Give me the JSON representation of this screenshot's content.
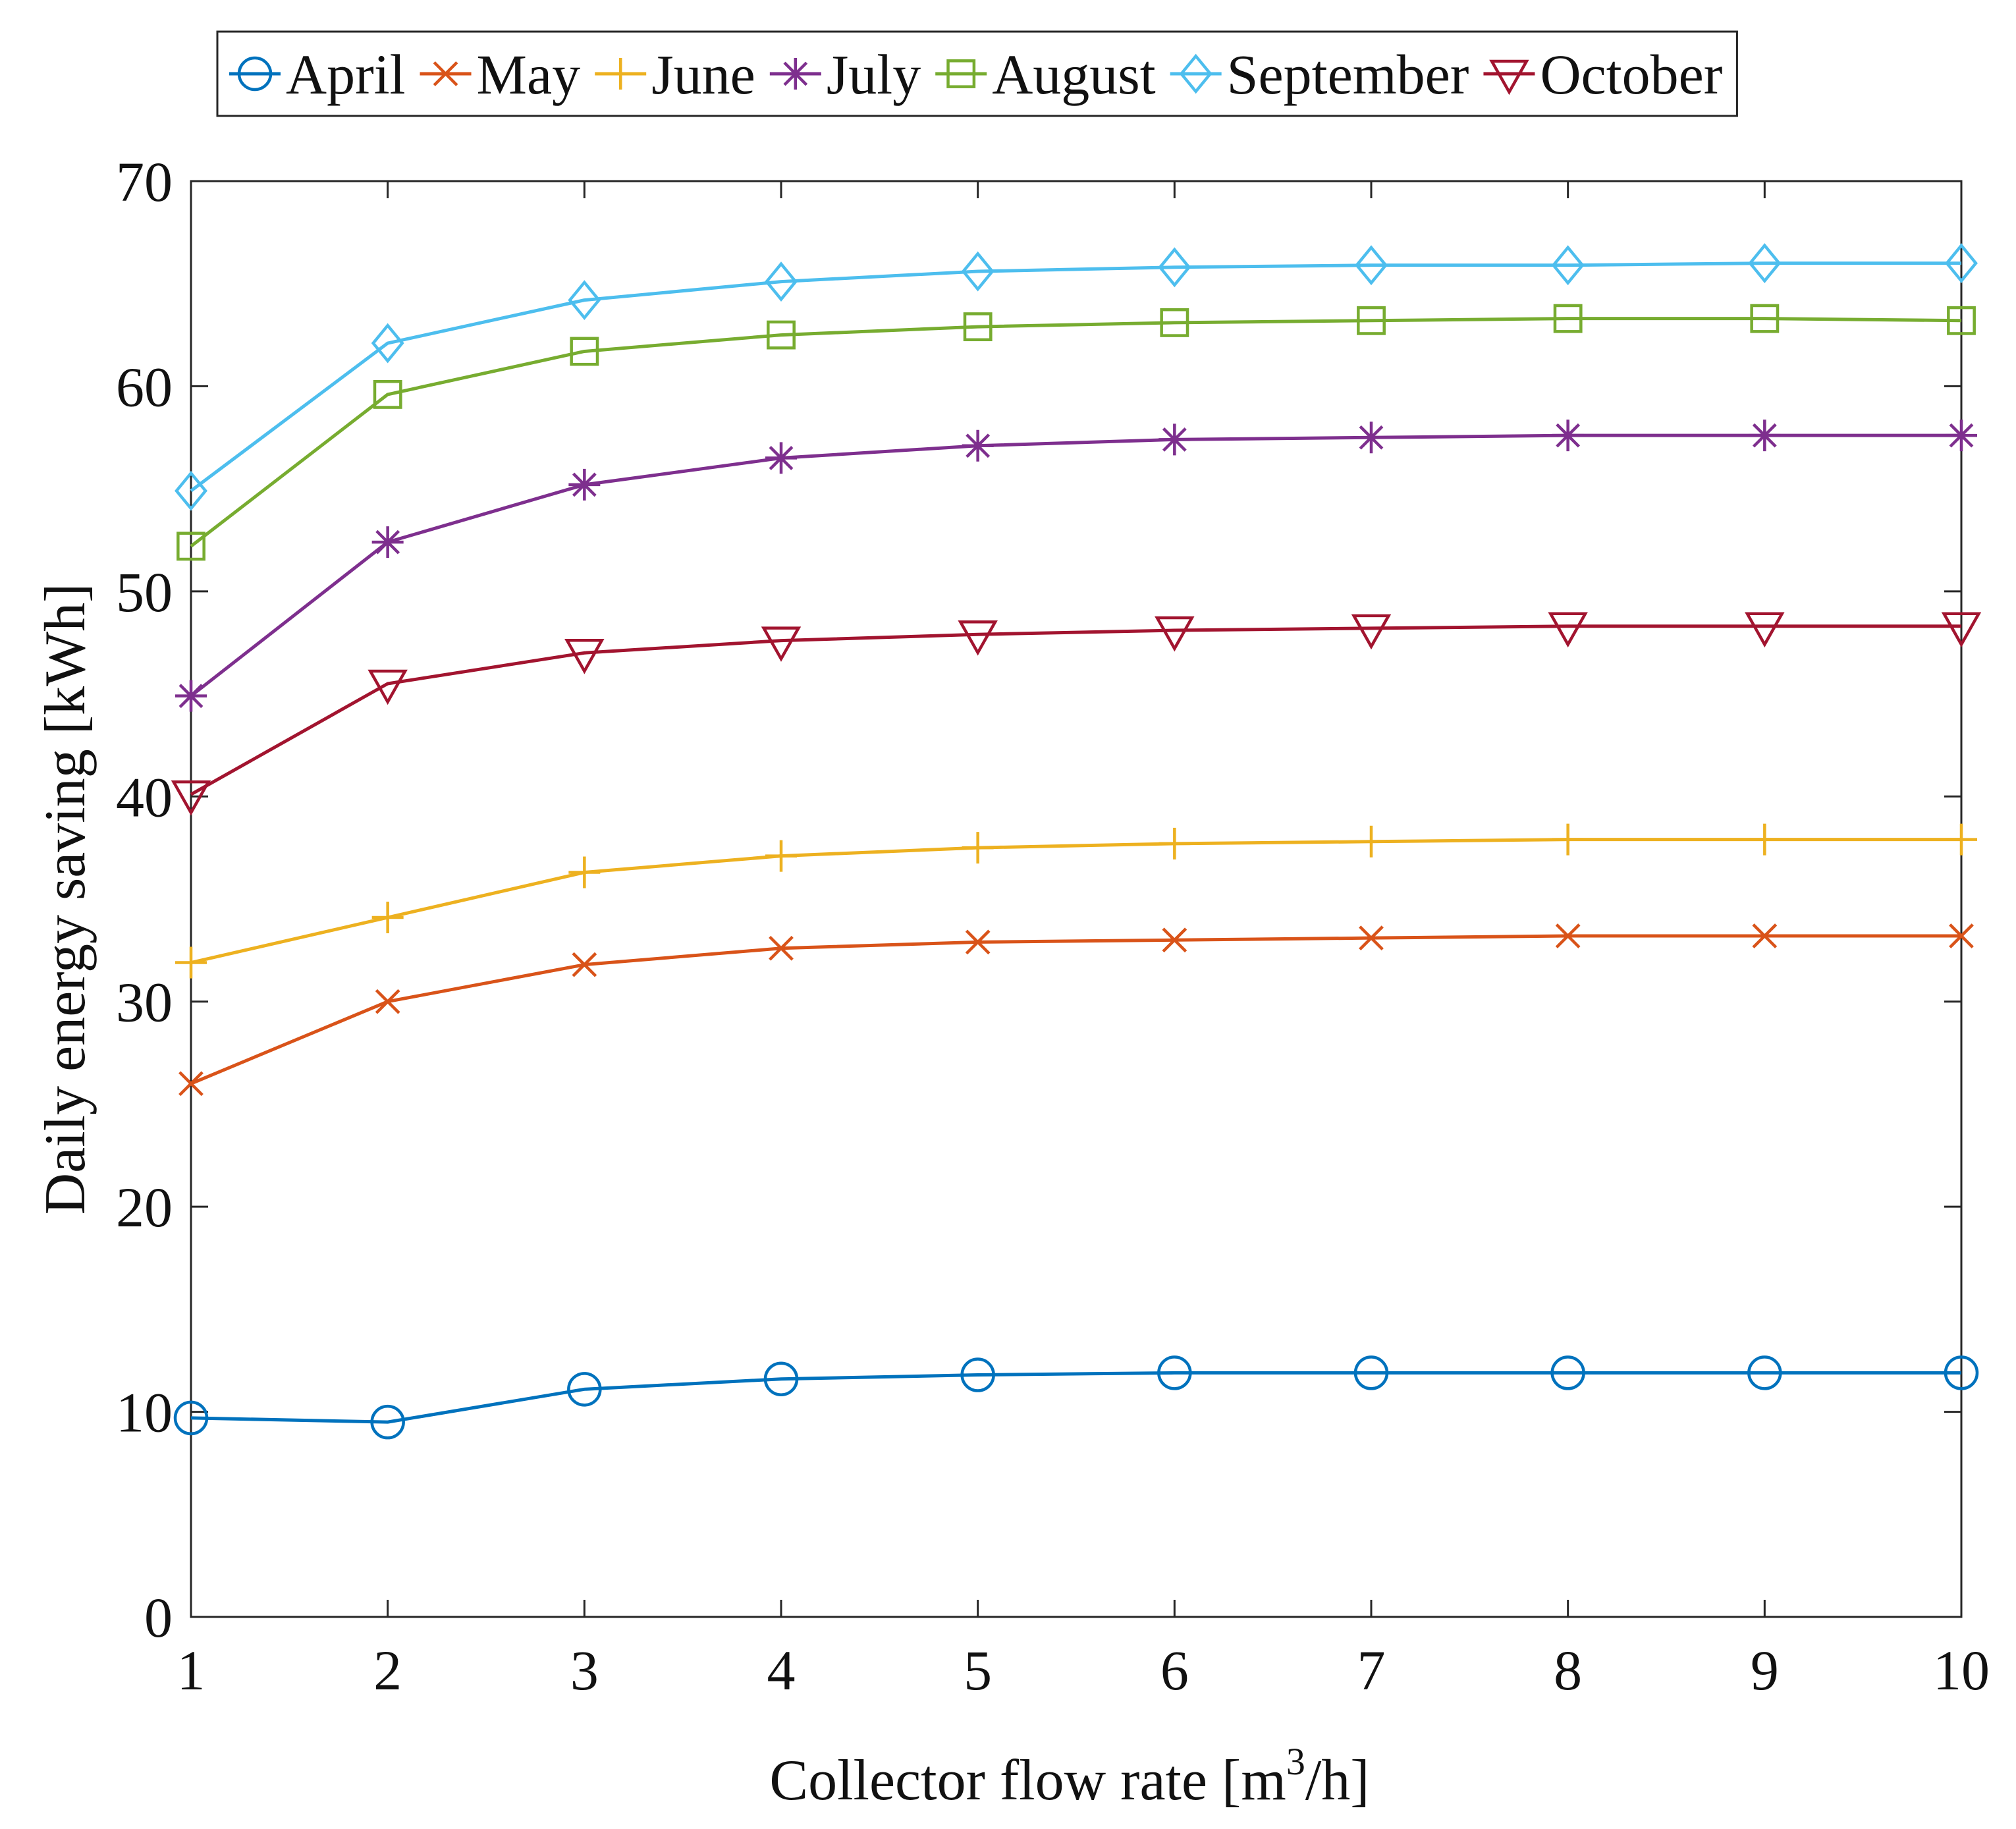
{
  "chart_data": {
    "type": "line",
    "title": "",
    "xlabel": "Collector flow rate  [m",
    "xlabel_sup": "3",
    "xlabel_tail": "/h]",
    "ylabel": "Daily energy saving [kWh]",
    "x": [
      1,
      2,
      3,
      4,
      5,
      6,
      7,
      8,
      9,
      10
    ],
    "xlim": [
      1,
      10
    ],
    "ylim": [
      0,
      70
    ],
    "xticks": [
      1,
      2,
      3,
      4,
      5,
      6,
      7,
      8,
      9,
      10
    ],
    "yticks": [
      0,
      10,
      20,
      30,
      40,
      50,
      60,
      70
    ],
    "grid": false,
    "legend_position": "top, outside the axes, horizontal",
    "series": [
      {
        "name": "April",
        "color": "#0072BD",
        "marker": "circle",
        "values": [
          9.7,
          9.5,
          11.1,
          11.6,
          11.8,
          11.9,
          11.9,
          11.9,
          11.9,
          11.9
        ]
      },
      {
        "name": "May",
        "color": "#D95319",
        "marker": "x",
        "values": [
          26.0,
          30.0,
          31.8,
          32.6,
          32.9,
          33.0,
          33.1,
          33.2,
          33.2,
          33.2
        ]
      },
      {
        "name": "June",
        "color": "#EDB120",
        "marker": "plus",
        "values": [
          31.9,
          34.1,
          36.3,
          37.1,
          37.5,
          37.7,
          37.8,
          37.9,
          37.9,
          37.9
        ]
      },
      {
        "name": "July",
        "color": "#7E2F8E",
        "marker": "asterisk",
        "values": [
          44.9,
          52.4,
          55.2,
          56.5,
          57.1,
          57.4,
          57.5,
          57.6,
          57.6,
          57.6
        ]
      },
      {
        "name": "August",
        "color": "#77AC30",
        "marker": "square",
        "values": [
          52.2,
          59.6,
          61.7,
          62.5,
          62.9,
          63.1,
          63.2,
          63.3,
          63.3,
          63.2
        ]
      },
      {
        "name": "September",
        "color": "#4DBEEE",
        "marker": "diamond",
        "values": [
          54.9,
          62.1,
          64.2,
          65.1,
          65.6,
          65.8,
          65.9,
          65.9,
          66.0,
          66.0
        ]
      },
      {
        "name": "October",
        "color": "#A2142F",
        "marker": "triangle-down",
        "values": [
          40.1,
          45.5,
          47.0,
          47.6,
          47.9,
          48.1,
          48.2,
          48.3,
          48.3,
          48.3
        ]
      }
    ]
  }
}
